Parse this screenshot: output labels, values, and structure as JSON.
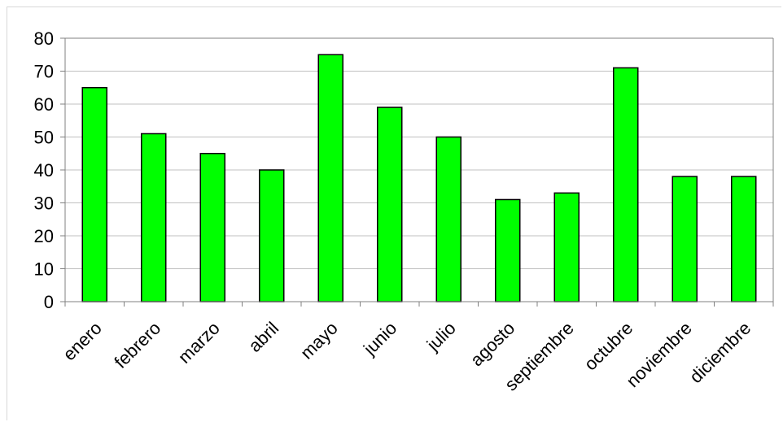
{
  "chart_data": {
    "type": "bar",
    "title": "",
    "xlabel": "",
    "ylabel": "",
    "categories": [
      "enero",
      "febrero",
      "marzo",
      "abril",
      "mayo",
      "junio",
      "julio",
      "agosto",
      "septiembre",
      "octubre",
      "noviembre",
      "diciembre"
    ],
    "values": [
      65,
      51,
      45,
      40,
      75,
      59,
      50,
      31,
      33,
      71,
      38,
      38
    ],
    "ylim": [
      0,
      80
    ],
    "yticks": [
      0,
      10,
      20,
      30,
      40,
      50,
      60,
      70,
      80
    ],
    "grid": true,
    "legend": "none",
    "colors": {
      "bar_fill": "#00ff00",
      "bar_stroke": "#000000",
      "grid": "#c0c0c0",
      "axis": "#808080"
    }
  }
}
